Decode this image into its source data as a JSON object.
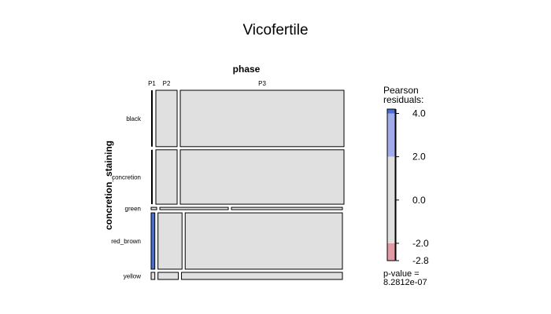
{
  "chart_data": {
    "type": "mosaic",
    "title": "Vicofertile",
    "x_variable": "phase",
    "y_variable": "concretion_staining",
    "x_levels": [
      "P1",
      "P2",
      "P3"
    ],
    "y_levels": [
      "black",
      "concretion",
      "green",
      "red_brown",
      "yellow"
    ],
    "row_proportions": [
      0.285,
      0.275,
      0.012,
      0.285,
      0.036
    ],
    "cells": [
      [
        0.0,
        0.115,
        0.885
      ],
      [
        0.0,
        0.115,
        0.885
      ],
      [
        0.03,
        0.37,
        0.6
      ],
      [
        0.02,
        0.13,
        0.85
      ],
      [
        0.02,
        0.11,
        0.87
      ]
    ],
    "cell_fills": [
      [
        "none",
        "none",
        "none"
      ],
      [
        "none",
        "none",
        "none"
      ],
      [
        "none",
        "none",
        "none"
      ],
      [
        "pos_high",
        "none",
        "none"
      ],
      [
        "none",
        "none",
        "none"
      ]
    ],
    "legend": {
      "title_line1": "Pearson",
      "title_line2": "residuals:",
      "min": -2.8,
      "max": 4.2,
      "ticks": [
        "4.0",
        "2.0",
        "0.0",
        "-2.0",
        "-2.8"
      ],
      "tick_values": [
        4.0,
        2.0,
        0.0,
        -2.0,
        -2.8
      ],
      "bands": [
        {
          "from": 4.0,
          "to": 4.2,
          "color": "#4a6ed8"
        },
        {
          "from": 2.0,
          "to": 4.0,
          "color": "#a3acea"
        },
        {
          "from": -2.0,
          "to": 2.0,
          "color": "#e0e0e0"
        },
        {
          "from": -2.8,
          "to": -2.0,
          "color": "#e29aa6"
        }
      ],
      "pvalue_line1": "p-value =",
      "pvalue_line2": "8.2812e-07"
    },
    "colors": {
      "neutral": "#e0e0e0",
      "pos_high": "#4a6ed8",
      "pos_mid": "#a3acea",
      "neg_mid": "#e29aa6"
    }
  }
}
